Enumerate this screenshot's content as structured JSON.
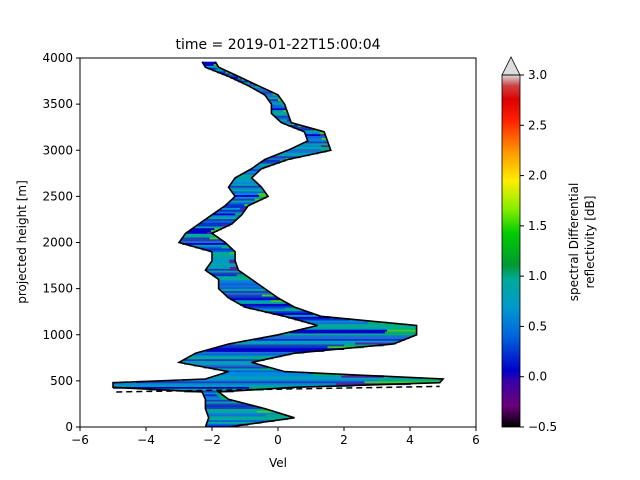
{
  "chart_data": {
    "type": "heatmap",
    "title": "time = 2019-01-22T15:00:04",
    "xlabel": "Vel",
    "ylabel": "projected height [m]",
    "xlim": [
      -6,
      6
    ],
    "ylim": [
      0,
      4000
    ],
    "x_ticks": [
      "−6",
      "−4",
      "−2",
      "0",
      "2",
      "4",
      "6"
    ],
    "y_ticks": [
      "0",
      "500",
      "1000",
      "1500",
      "2000",
      "2500",
      "3000",
      "3500",
      "4000"
    ],
    "colorbar": {
      "label_line1": "spectral Differential",
      "label_line2": "reflectivity [dB]",
      "range": [
        -0.5,
        3.0
      ],
      "ticks": [
        "−0.5",
        "0.0",
        "0.5",
        "1.0",
        "1.5",
        "2.0",
        "2.5",
        "3.0"
      ],
      "extend": "max"
    },
    "profile": {
      "height": [
        0,
        100,
        200,
        300,
        380,
        430,
        480,
        520,
        600,
        700,
        800,
        900,
        1000,
        1100,
        1200,
        1300,
        1400,
        1500,
        1600,
        1700,
        1800,
        1900,
        2000,
        2100,
        2200,
        2300,
        2400,
        2500,
        2600,
        2700,
        2800,
        2900,
        3000,
        3100,
        3200,
        3300,
        3400,
        3500,
        3600,
        3700,
        3800,
        3900,
        3960
      ],
      "left_edge": [
        -2.2,
        -2.1,
        -2.2,
        -2.2,
        -2.3,
        -5.0,
        -5.0,
        -2.2,
        -1.5,
        -3.0,
        -2.5,
        -1.5,
        0.0,
        1.2,
        0.2,
        -1.0,
        -1.5,
        -1.8,
        -1.8,
        -2.2,
        -2.0,
        -2.0,
        -3.0,
        -2.8,
        -2.4,
        -2.0,
        -1.6,
        -1.3,
        -1.5,
        -1.3,
        -0.8,
        -0.4,
        0.3,
        0.9,
        0.8,
        0.1,
        -0.2,
        -0.2,
        -0.4,
        -0.9,
        -1.5,
        -2.2,
        -2.3
      ],
      "right_edge": [
        -1.5,
        0.5,
        -0.4,
        -1.5,
        -1.8,
        0.5,
        4.9,
        5.0,
        0.2,
        -0.8,
        0.5,
        3.5,
        4.2,
        4.2,
        1.3,
        0.5,
        0.0,
        -0.4,
        -0.8,
        -1.2,
        -1.3,
        -1.3,
        -1.6,
        -2.0,
        -1.4,
        -1.1,
        -0.9,
        -0.3,
        -0.5,
        -0.8,
        -0.5,
        0.3,
        1.6,
        1.5,
        1.4,
        0.4,
        0.3,
        0.2,
        0.0,
        -0.6,
        -1.2,
        -1.8,
        -1.9
      ],
      "dashed_segment": {
        "x": [
          -4.9,
          4.9
        ],
        "height": [
          380,
          440
        ]
      }
    }
  }
}
